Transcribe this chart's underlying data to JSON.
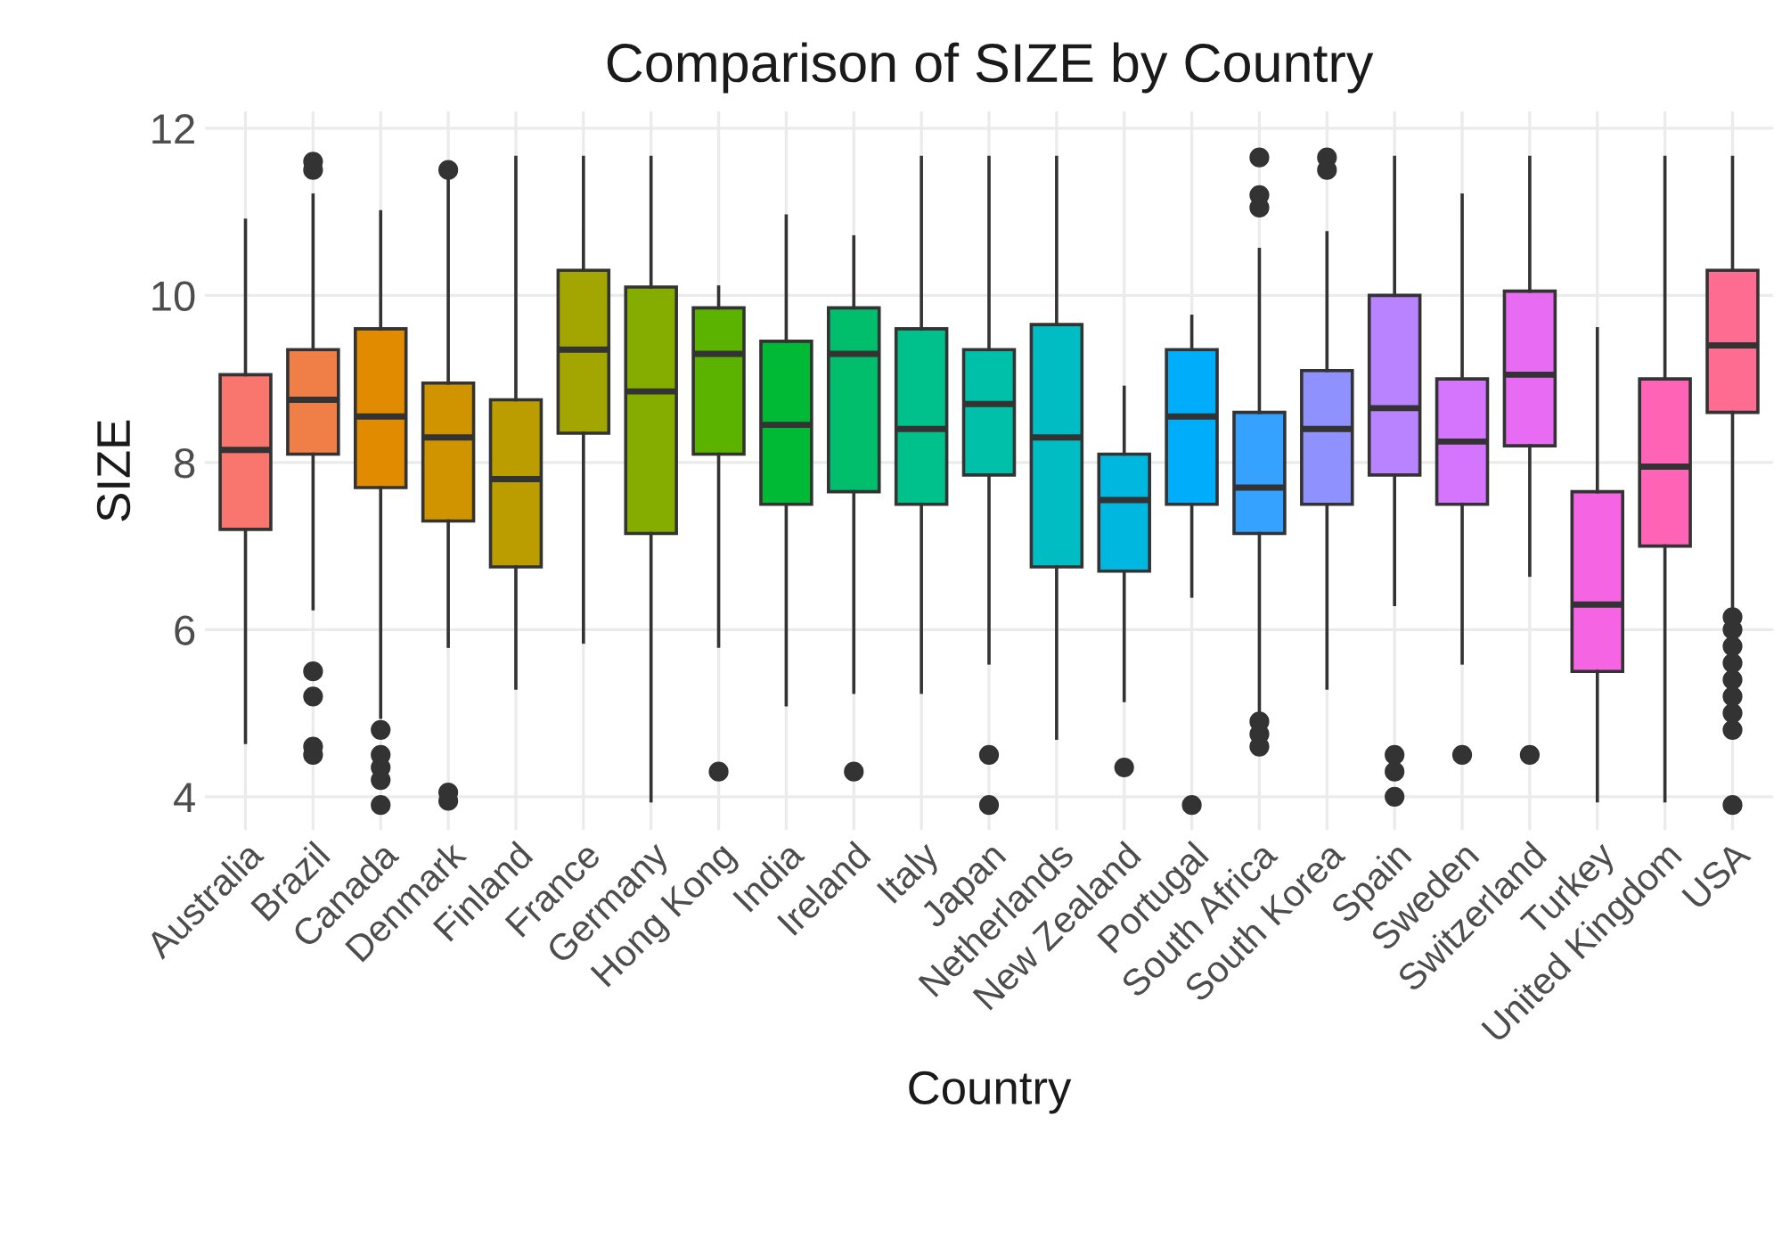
{
  "chart_data": {
    "type": "box",
    "title": "Comparison of SIZE by Country",
    "xlabel": "Country",
    "ylabel": "SIZE",
    "categories": [
      "Australia",
      "Brazil",
      "Canada",
      "Denmark",
      "Finland",
      "France",
      "Germany",
      "Hong Kong",
      "India",
      "Ireland",
      "Italy",
      "Japan",
      "Netherlands",
      "New Zealand",
      "Portugal",
      "South Africa",
      "South Korea",
      "Spain",
      "Sweden",
      "Switzerland",
      "Turkey",
      "United Kingdom",
      "USA"
    ],
    "colors": [
      "#F8766D",
      "#EF7F46",
      "#E08B00",
      "#CF9400",
      "#BB9D00",
      "#A3A500",
      "#85AD00",
      "#5BB300",
      "#00B935",
      "#00BE6C",
      "#00C08B",
      "#00C0A9",
      "#00BDC4",
      "#00B7E0",
      "#00ADFA",
      "#35A2FF",
      "#8F91FF",
      "#B983FF",
      "#D575FE",
      "#E76BF3",
      "#F564E3",
      "#FF63B6",
      "#FF6C91"
    ],
    "boxes": [
      {
        "low": 4.65,
        "q1": 7.2,
        "median": 8.15,
        "q3": 9.05,
        "high": 10.9
      },
      {
        "low": 6.25,
        "q1": 8.1,
        "median": 8.75,
        "q3": 9.35,
        "high": 11.2,
        "outliers": [
          11.6,
          11.5,
          5.5,
          5.2,
          4.6,
          4.5
        ]
      },
      {
        "low": 4.95,
        "q1": 7.7,
        "median": 8.55,
        "q3": 9.6,
        "high": 11.0,
        "outliers": [
          4.8,
          4.5,
          4.35,
          4.2,
          3.9
        ]
      },
      {
        "low": 5.8,
        "q1": 7.3,
        "median": 8.3,
        "q3": 8.95,
        "high": 11.4,
        "outliers": [
          11.5,
          4.05,
          3.95
        ]
      },
      {
        "low": 5.3,
        "q1": 6.75,
        "median": 7.8,
        "q3": 8.75,
        "high": 11.65
      },
      {
        "low": 5.85,
        "q1": 8.35,
        "median": 9.35,
        "q3": 10.3,
        "high": 11.65
      },
      {
        "low": 3.95,
        "q1": 7.15,
        "median": 8.85,
        "q3": 10.1,
        "high": 11.65
      },
      {
        "low": 5.8,
        "q1": 8.1,
        "median": 9.3,
        "q3": 9.85,
        "high": 10.1,
        "outliers": [
          4.3
        ]
      },
      {
        "low": 5.1,
        "q1": 7.5,
        "median": 8.45,
        "q3": 9.45,
        "high": 10.95
      },
      {
        "low": 5.25,
        "q1": 7.65,
        "median": 9.3,
        "q3": 9.85,
        "high": 10.7,
        "outliers": [
          4.3
        ]
      },
      {
        "low": 5.25,
        "q1": 7.5,
        "median": 8.4,
        "q3": 9.6,
        "high": 11.65
      },
      {
        "low": 5.6,
        "q1": 7.85,
        "median": 8.7,
        "q3": 9.35,
        "high": 11.65,
        "outliers": [
          4.5,
          3.9
        ]
      },
      {
        "low": 4.7,
        "q1": 6.75,
        "median": 8.3,
        "q3": 9.65,
        "high": 11.65
      },
      {
        "low": 5.15,
        "q1": 6.7,
        "median": 7.55,
        "q3": 8.1,
        "high": 8.9,
        "outliers": [
          4.35
        ]
      },
      {
        "low": 6.4,
        "q1": 7.5,
        "median": 8.55,
        "q3": 9.35,
        "high": 9.75,
        "outliers": [
          3.9
        ]
      },
      {
        "low": 5.0,
        "q1": 7.15,
        "median": 7.7,
        "q3": 8.6,
        "high": 10.55,
        "outliers": [
          11.65,
          11.2,
          11.05,
          4.9,
          4.75,
          4.6
        ]
      },
      {
        "low": 5.3,
        "q1": 7.5,
        "median": 8.4,
        "q3": 9.1,
        "high": 10.75,
        "outliers": [
          11.65,
          11.5
        ]
      },
      {
        "low": 6.3,
        "q1": 7.85,
        "median": 8.65,
        "q3": 10.0,
        "high": 11.65,
        "outliers": [
          4.5,
          4.3,
          4.0
        ]
      },
      {
        "low": 5.6,
        "q1": 7.5,
        "median": 8.25,
        "q3": 9.0,
        "high": 11.2,
        "outliers": [
          4.5
        ]
      },
      {
        "low": 6.65,
        "q1": 8.2,
        "median": 9.05,
        "q3": 10.05,
        "high": 11.65,
        "outliers": [
          4.5
        ]
      },
      {
        "low": 3.95,
        "q1": 5.5,
        "median": 6.3,
        "q3": 7.65,
        "high": 9.6
      },
      {
        "low": 3.95,
        "q1": 7.0,
        "median": 7.95,
        "q3": 9.0,
        "high": 11.65
      },
      {
        "low": 6.25,
        "q1": 8.6,
        "median": 9.4,
        "q3": 10.3,
        "high": 11.65,
        "outliers": [
          6.15,
          6.0,
          5.8,
          5.6,
          5.4,
          5.2,
          5.0,
          4.8,
          3.9
        ]
      }
    ],
    "ylim": [
      3.6,
      12.2
    ],
    "yticks": [
      4,
      6,
      8,
      10,
      12
    ],
    "grid": true
  }
}
